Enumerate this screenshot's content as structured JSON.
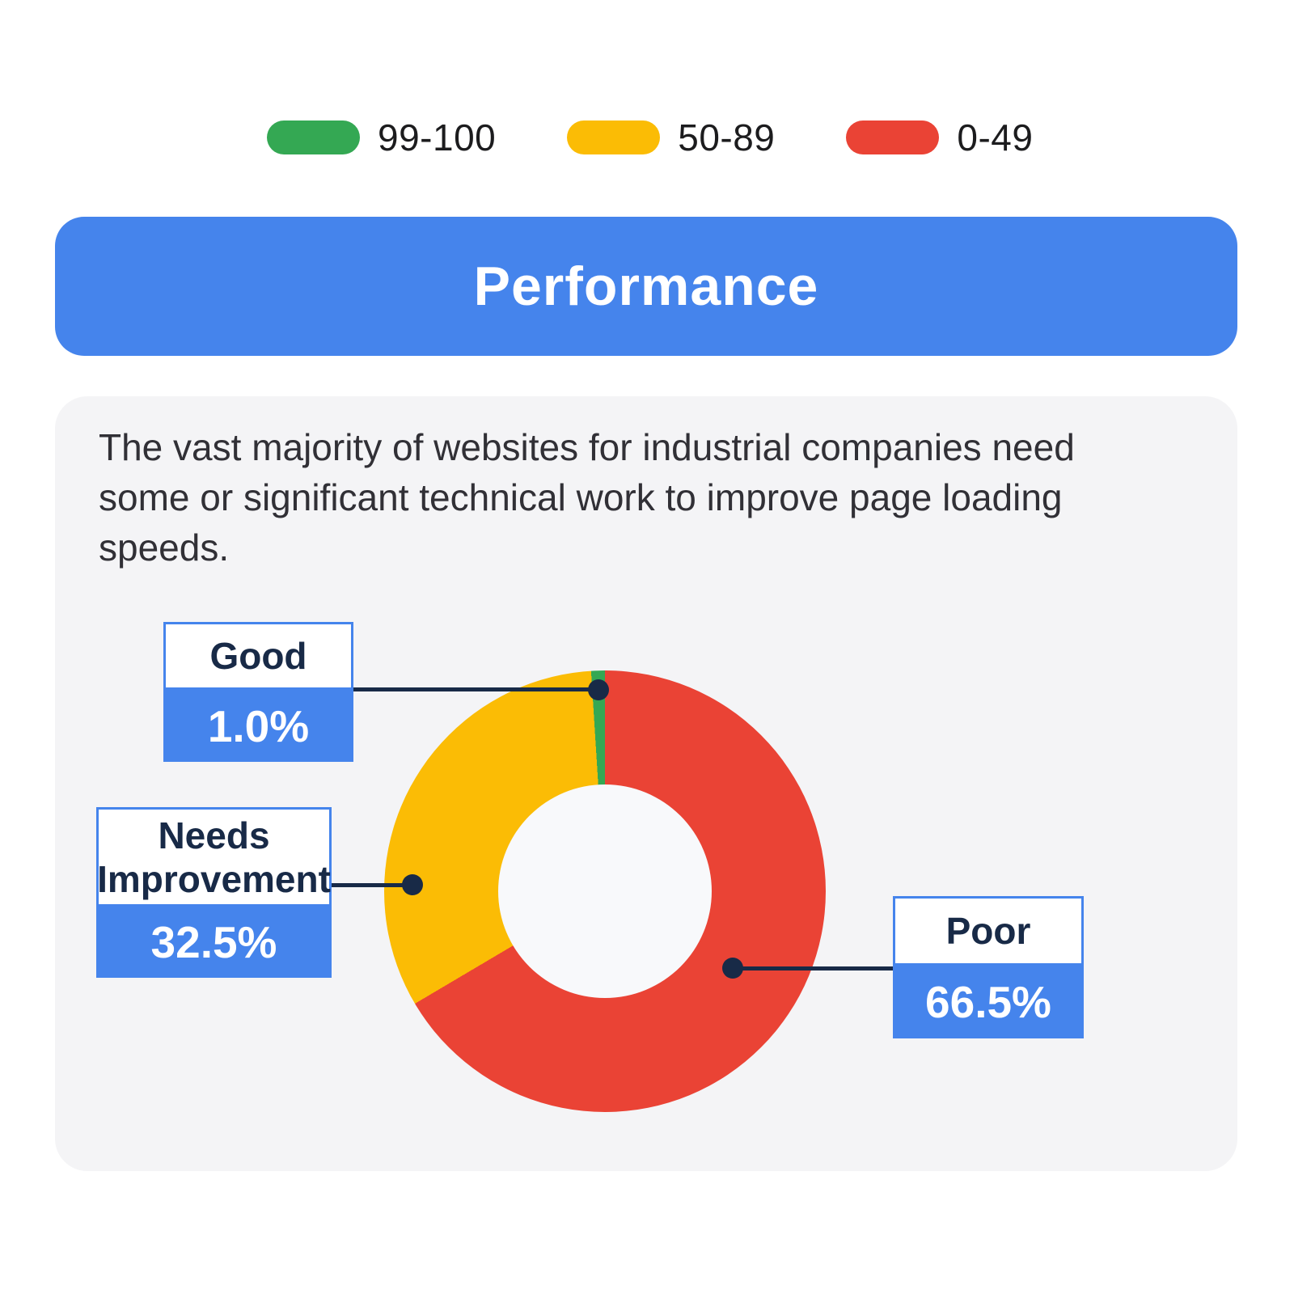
{
  "legend": {
    "items": [
      {
        "label": "99-100",
        "color": "#34a853"
      },
      {
        "label": "50-89",
        "color": "#fbbc05"
      },
      {
        "label": "0-49",
        "color": "#ea4335"
      }
    ]
  },
  "banner": {
    "title": "Performance",
    "color": "#4584ec"
  },
  "card": {
    "paragraph": "The vast majority of websites for industrial companies need some or significant technical work to improve page loading speeds."
  },
  "chart_data": {
    "type": "pie",
    "subtype": "donut",
    "direction": "clockwise",
    "start_angle_deg": 0,
    "inner_radius_ratio": 0.48,
    "values_unit": "%",
    "segments": [
      {
        "label": "Poor",
        "value": 66.5,
        "color": "#ea4335",
        "score_range": "0-49"
      },
      {
        "label": "Needs Improvement",
        "value": 32.5,
        "color": "#fbbc05",
        "score_range": "50-89"
      },
      {
        "label": "Good",
        "value": 1.0,
        "color": "#34a853",
        "score_range": "99-100"
      }
    ]
  },
  "callouts": {
    "good": {
      "label": "Good",
      "value": "1.0%"
    },
    "needs": {
      "label": "Needs Improvement",
      "value": "32.5%"
    },
    "poor": {
      "label": "Poor",
      "value": "66.5%"
    }
  },
  "colors": {
    "accent_blue": "#4584ec",
    "navy": "#182a47",
    "card_bg": "#f4f4f6",
    "page_bg": "#ffffff"
  }
}
